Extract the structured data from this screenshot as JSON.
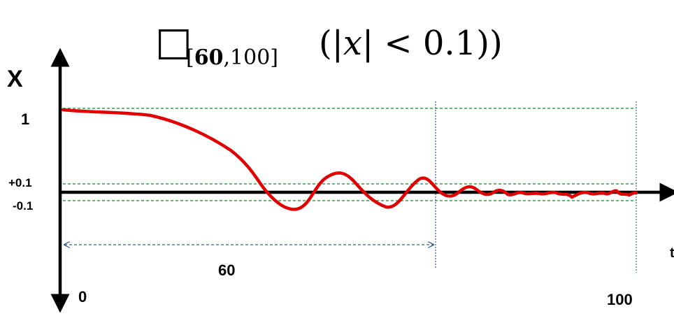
{
  "formula": {
    "operator_glyph": "□",
    "sub_open": "[",
    "sub_start": "60",
    "sub_sep": ",",
    "sub_end": "100",
    "sub_close": "]",
    "body_open": "(|",
    "body_var": "x",
    "body_rest": "| < 0.1))"
  },
  "axes": {
    "y_label": "X",
    "t_label": "t"
  },
  "labels": {
    "one": "1",
    "plus_tol": "+0.1",
    "minus_tol": "-0.1",
    "origin": "0",
    "end": "100",
    "interval_length": "60"
  },
  "colors": {
    "signal": "#e00000",
    "threshold": "#2ea043",
    "marker": "#3a5f9a",
    "axis": "#000000"
  }
}
